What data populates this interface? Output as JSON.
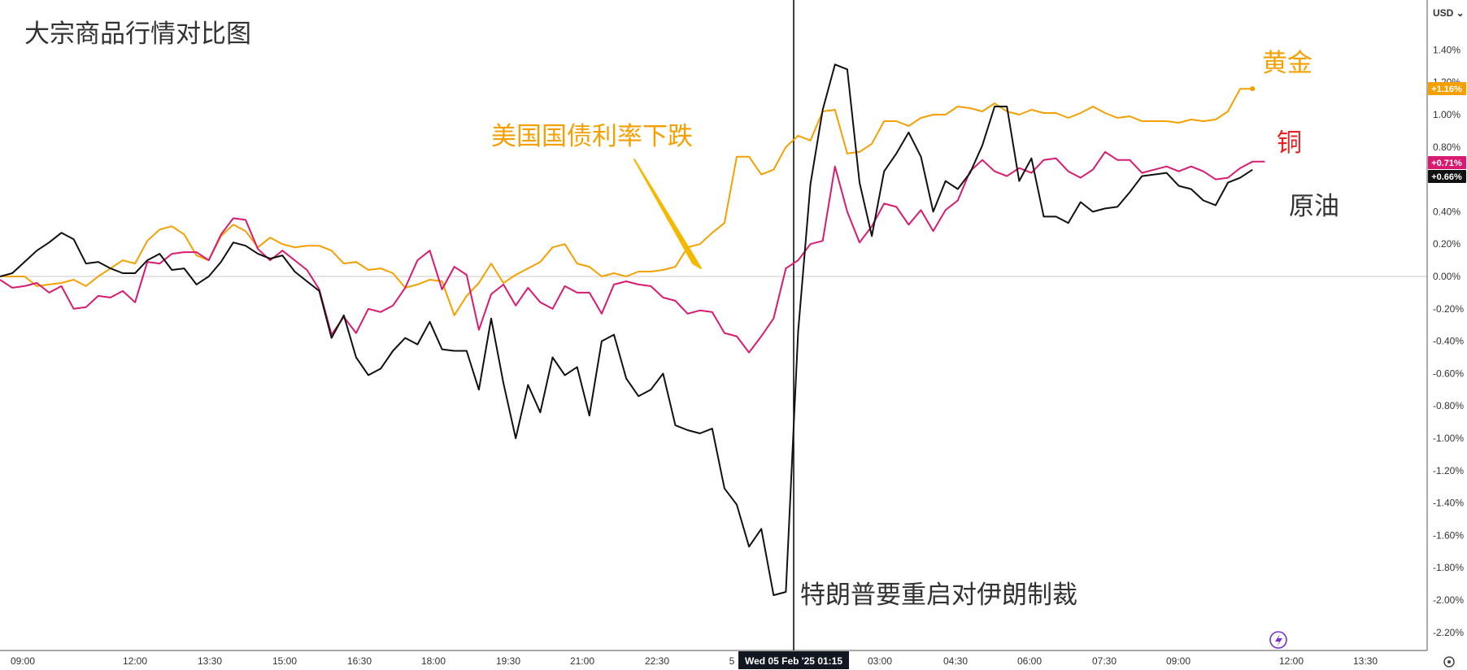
{
  "currency": "USD",
  "chart_data": {
    "type": "line",
    "title": "大宗商品行情对比图",
    "y_unit": "%",
    "ylim": [
      -2.25,
      1.7
    ],
    "grid": false,
    "zero_line": true,
    "x_tick_labels": [
      "09:00",
      "12:00",
      "13:30",
      "15:00",
      "16:30",
      "18:00",
      "19:30",
      "21:00",
      "22:30",
      "5",
      "03:00",
      "04:30",
      "06:00",
      "07:30",
      "09:00",
      "12:00",
      "13:30"
    ],
    "y_tick_labels": [
      "1.40%",
      "1.20%",
      "1.00%",
      "0.80%",
      "0.40%",
      "0.20%",
      "0.00%",
      "-0.20%",
      "-0.40%",
      "-0.60%",
      "-0.80%",
      "-1.00%",
      "-1.20%",
      "-1.40%",
      "-1.60%",
      "-1.80%",
      "-2.00%",
      "-2.20%"
    ],
    "crosshair_label": "Wed 05 Feb '25   01:15",
    "annotations": [
      "美国国债利率下跌",
      "特朗普要重启对伊朗制裁"
    ],
    "series": [
      {
        "name": "黄金",
        "color": "#f5a000",
        "last_label": "+1.16%",
        "values": [
          0.0,
          0.0,
          0.0,
          -0.06,
          -0.05,
          -0.04,
          -0.02,
          -0.06,
          0.0,
          0.05,
          0.1,
          0.08,
          0.22,
          0.29,
          0.31,
          0.26,
          0.13,
          0.1,
          0.25,
          0.32,
          0.28,
          0.18,
          0.24,
          0.2,
          0.18,
          0.19,
          0.19,
          0.16,
          0.08,
          0.09,
          0.04,
          0.05,
          0.02,
          -0.07,
          -0.05,
          -0.02,
          -0.03,
          -0.24,
          -0.12,
          -0.04,
          0.08,
          -0.04,
          0.01,
          0.05,
          0.09,
          0.18,
          0.2,
          0.08,
          0.06,
          0.0,
          0.02,
          0.0,
          0.03,
          0.03,
          0.04,
          0.06,
          0.18,
          0.2,
          0.27,
          0.33,
          0.74,
          0.74,
          0.63,
          0.66,
          0.8,
          0.87,
          0.84,
          1.02,
          1.03,
          0.76,
          0.77,
          0.82,
          0.96,
          0.96,
          0.93,
          0.98,
          1.0,
          1.0,
          1.05,
          1.04,
          1.02,
          1.07,
          1.02,
          1.0,
          1.03,
          1.01,
          1.01,
          0.98,
          1.01,
          1.05,
          1.01,
          0.98,
          0.99,
          0.96,
          0.96,
          0.96,
          0.95,
          0.97,
          0.96,
          0.97,
          1.02,
          1.16,
          1.16
        ]
      },
      {
        "name": "铜",
        "color": "#d81b70",
        "last_label": "+0.71%",
        "values": [
          -0.02,
          -0.07,
          -0.06,
          -0.04,
          -0.1,
          -0.06,
          -0.2,
          -0.19,
          -0.12,
          -0.13,
          -0.09,
          -0.16,
          0.09,
          0.08,
          0.14,
          0.15,
          0.15,
          0.1,
          0.26,
          0.36,
          0.35,
          0.17,
          0.1,
          0.16,
          0.1,
          0.04,
          -0.08,
          -0.36,
          -0.25,
          -0.35,
          -0.2,
          -0.22,
          -0.18,
          -0.07,
          0.1,
          0.16,
          -0.08,
          0.06,
          0.01,
          -0.33,
          -0.11,
          -0.05,
          -0.18,
          -0.07,
          -0.16,
          -0.2,
          -0.06,
          -0.1,
          -0.1,
          -0.23,
          -0.05,
          -0.03,
          -0.05,
          -0.06,
          -0.13,
          -0.15,
          -0.23,
          -0.21,
          -0.22,
          -0.35,
          -0.37,
          -0.47,
          -0.37,
          -0.26,
          0.05,
          0.1,
          0.2,
          0.22,
          0.68,
          0.4,
          0.21,
          0.31,
          0.45,
          0.43,
          0.32,
          0.41,
          0.28,
          0.41,
          0.47,
          0.65,
          0.72,
          0.65,
          0.62,
          0.67,
          0.64,
          0.72,
          0.73,
          0.65,
          0.61,
          0.66,
          0.77,
          0.72,
          0.72,
          0.64,
          0.66,
          0.68,
          0.65,
          0.68,
          0.65,
          0.6,
          0.61,
          0.67,
          0.71,
          0.71
        ]
      },
      {
        "name": "原油",
        "color": "#111111",
        "last_label": "+0.66%",
        "values": [
          0.0,
          0.02,
          0.09,
          0.16,
          0.21,
          0.27,
          0.23,
          0.08,
          0.09,
          0.05,
          0.02,
          0.02,
          0.1,
          0.14,
          0.04,
          0.05,
          -0.05,
          0.0,
          0.09,
          0.21,
          0.19,
          0.14,
          0.11,
          0.13,
          0.03,
          -0.03,
          -0.09,
          -0.38,
          -0.24,
          -0.5,
          -0.61,
          -0.57,
          -0.46,
          -0.38,
          -0.42,
          -0.28,
          -0.45,
          -0.46,
          -0.46,
          -0.7,
          -0.26,
          -0.66,
          -1.0,
          -0.67,
          -0.84,
          -0.5,
          -0.61,
          -0.56,
          -0.86,
          -0.4,
          -0.36,
          -0.63,
          -0.74,
          -0.7,
          -0.6,
          -0.92,
          -0.95,
          -0.97,
          -0.94,
          -1.31,
          -1.41,
          -1.67,
          -1.56,
          -1.97,
          -1.95,
          -0.34,
          0.57,
          1.03,
          1.31,
          1.28,
          0.58,
          0.25,
          0.65,
          0.76,
          0.89,
          0.74,
          0.4,
          0.59,
          0.54,
          0.64,
          0.81,
          1.05,
          1.05,
          0.59,
          0.73,
          0.37,
          0.37,
          0.33,
          0.46,
          0.4,
          0.42,
          0.43,
          0.52,
          0.62,
          0.63,
          0.64,
          0.56,
          0.54,
          0.47,
          0.44,
          0.58,
          0.61,
          0.66
        ]
      }
    ]
  }
}
